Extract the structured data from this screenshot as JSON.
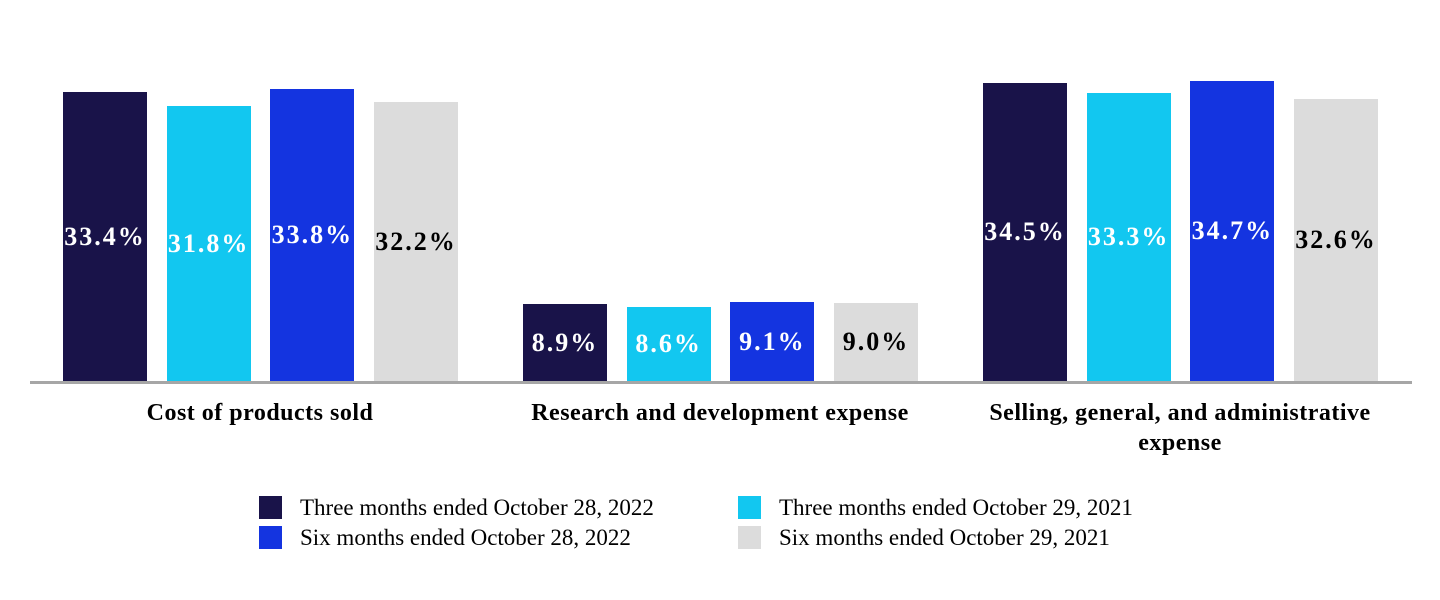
{
  "chart_data": {
    "type": "bar",
    "title": "",
    "xlabel": "",
    "ylabel": "",
    "ylim": [
      0,
      44
    ],
    "grid": false,
    "legend_position": "bottom",
    "axis_line_color": "#a6a6a6",
    "category_label_color": "#000000",
    "categories": [
      "Cost of products sold",
      "Research and development expense",
      "Selling, general, and administrative expense"
    ],
    "series": [
      {
        "name": "Three months ended October 28, 2022",
        "color": "#191349",
        "label_color": "#ffffff",
        "values": [
          33.4,
          8.9,
          34.5
        ],
        "labels": [
          "33.4%",
          "8.9%",
          "34.5%"
        ]
      },
      {
        "name": "Three months ended October 29, 2021",
        "color": "#12c7f0",
        "label_color": "#ffffff",
        "values": [
          31.8,
          8.6,
          33.3
        ],
        "labels": [
          "31.8%",
          "8.6%",
          "33.3%"
        ]
      },
      {
        "name": "Six months ended October 28, 2022",
        "color": "#1434e0",
        "label_color": "#ffffff",
        "values": [
          33.8,
          9.1,
          34.7
        ],
        "labels": [
          "33.8%",
          "9.1%",
          "34.7%"
        ]
      },
      {
        "name": "Six months ended October 29, 2021",
        "color": "#dcdcdc",
        "label_color": "#000000",
        "values": [
          32.2,
          9.0,
          32.6
        ],
        "labels": [
          "32.2%",
          "9.0%",
          "32.6%"
        ]
      }
    ]
  }
}
